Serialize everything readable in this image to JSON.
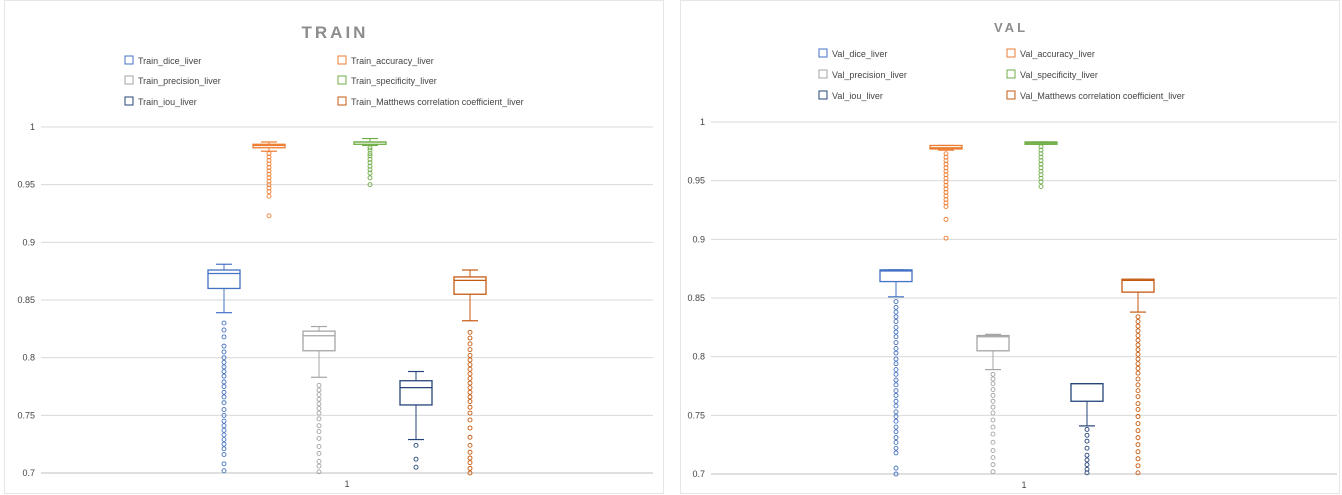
{
  "chart_data": [
    {
      "type": "box",
      "title": "TRAIN",
      "categories": [
        "1"
      ],
      "ylim": [
        0.7,
        1
      ],
      "yticks": [
        "0.7",
        "0.75",
        "0.8",
        "0.85",
        "0.9",
        "0.95",
        "1"
      ],
      "grid": true,
      "legend_position": "top",
      "series": [
        {
          "name": "Train_dice_liver",
          "color": "#4472C4",
          "whisker_low": 0.839,
          "q1": 0.86,
          "median": 0.873,
          "q3": 0.876,
          "whisker_high": 0.881,
          "outliers": [
            0.83,
            0.824,
            0.818,
            0.81,
            0.805,
            0.8,
            0.796,
            0.792,
            0.788,
            0.784,
            0.779,
            0.775,
            0.77,
            0.766,
            0.761,
            0.755,
            0.75,
            0.745,
            0.741,
            0.737,
            0.733,
            0.729,
            0.725,
            0.721,
            0.716,
            0.708,
            0.702
          ]
        },
        {
          "name": "Train_accuracy_liver",
          "color": "#ED7D31",
          "whisker_low": 0.979,
          "q1": 0.982,
          "median": 0.984,
          "q3": 0.985,
          "whisker_high": 0.987,
          "outliers": [
            0.977,
            0.974,
            0.971,
            0.968,
            0.965,
            0.962,
            0.959,
            0.956,
            0.953,
            0.95,
            0.947,
            0.944,
            0.94,
            0.923
          ]
        },
        {
          "name": "Train_precision_liver",
          "color": "#A5A5A5",
          "whisker_low": 0.783,
          "q1": 0.806,
          "median": 0.819,
          "q3": 0.823,
          "whisker_high": 0.827,
          "outliers": [
            0.776,
            0.772,
            0.768,
            0.764,
            0.76,
            0.756,
            0.752,
            0.747,
            0.741,
            0.736,
            0.73,
            0.723,
            0.717,
            0.71,
            0.706,
            0.701
          ]
        },
        {
          "name": "Train_specificity_liver",
          "color": "#70AD47",
          "whisker_low": 0.984,
          "q1": 0.985,
          "median": 0.987,
          "q3": 0.987,
          "whisker_high": 0.99,
          "outliers": [
            0.982,
            0.98,
            0.977,
            0.975,
            0.972,
            0.969,
            0.966,
            0.963,
            0.96,
            0.956,
            0.95
          ]
        },
        {
          "name": "Train_iou_liver",
          "color": "#264478",
          "whisker_low": 0.729,
          "q1": 0.759,
          "median": 0.774,
          "q3": 0.78,
          "whisker_high": 0.788,
          "outliers": [
            0.724,
            0.712,
            0.705
          ]
        },
        {
          "name": "Train_Matthews correlation coefficient_liver",
          "color": "#C55A11",
          "whisker_low": 0.832,
          "q1": 0.855,
          "median": 0.867,
          "q3": 0.87,
          "whisker_high": 0.876,
          "outliers": [
            0.822,
            0.817,
            0.812,
            0.807,
            0.802,
            0.798,
            0.794,
            0.79,
            0.786,
            0.782,
            0.778,
            0.774,
            0.77,
            0.766,
            0.762,
            0.757,
            0.752,
            0.746,
            0.739,
            0.731,
            0.724,
            0.718,
            0.713,
            0.709,
            0.704,
            0.7
          ]
        }
      ]
    },
    {
      "type": "box",
      "title": "VAL",
      "categories": [
        "1"
      ],
      "ylim": [
        0.7,
        1
      ],
      "yticks": [
        "0.7",
        "0.75",
        "0.8",
        "0.85",
        "0.9",
        "0.95",
        "1"
      ],
      "grid": true,
      "legend_position": "top",
      "series": [
        {
          "name": "Val_dice_liver",
          "color": "#4472C4",
          "whisker_low": 0.851,
          "q1": 0.864,
          "median": 0.873,
          "q3": 0.874,
          "whisker_high": 0.874,
          "outliers": [
            0.847,
            0.842,
            0.838,
            0.834,
            0.83,
            0.825,
            0.821,
            0.817,
            0.812,
            0.807,
            0.803,
            0.798,
            0.794,
            0.789,
            0.785,
            0.78,
            0.776,
            0.771,
            0.767,
            0.762,
            0.758,
            0.753,
            0.749,
            0.745,
            0.74,
            0.736,
            0.731,
            0.727,
            0.722,
            0.718,
            0.705,
            0.7
          ]
        },
        {
          "name": "Val_accuracy_liver",
          "color": "#ED7D31",
          "whisker_low": 0.976,
          "q1": 0.977,
          "median": 0.978,
          "q3": 0.98,
          "whisker_high": 0.98,
          "outliers": [
            0.973,
            0.97,
            0.967,
            0.964,
            0.961,
            0.958,
            0.955,
            0.952,
            0.949,
            0.946,
            0.943,
            0.94,
            0.937,
            0.934,
            0.931,
            0.928,
            0.917,
            0.901
          ]
        },
        {
          "name": "Val_precision_liver",
          "color": "#A5A5A5",
          "whisker_low": 0.789,
          "q1": 0.805,
          "median": 0.817,
          "q3": 0.818,
          "whisker_high": 0.819,
          "outliers": [
            0.785,
            0.781,
            0.777,
            0.772,
            0.767,
            0.762,
            0.757,
            0.752,
            0.746,
            0.74,
            0.734,
            0.727,
            0.72,
            0.714,
            0.708,
            0.702
          ]
        },
        {
          "name": "Val_specificity_liver",
          "color": "#70AD47",
          "whisker_low": 0.981,
          "q1": 0.981,
          "median": 0.982,
          "q3": 0.983,
          "whisker_high": 0.983,
          "outliers": [
            0.979,
            0.976,
            0.973,
            0.97,
            0.967,
            0.964,
            0.961,
            0.958,
            0.955,
            0.952,
            0.949,
            0.945
          ]
        },
        {
          "name": "Val_iou_liver",
          "color": "#264478",
          "whisker_low": 0.741,
          "q1": 0.762,
          "median": 0.777,
          "q3": 0.777,
          "whisker_high": 0.777,
          "outliers": [
            0.738,
            0.733,
            0.728,
            0.722,
            0.716,
            0.712,
            0.708,
            0.704,
            0.701
          ]
        },
        {
          "name": "Val_Matthews correlation coefficient_liver",
          "color": "#C55A11",
          "whisker_low": 0.838,
          "q1": 0.855,
          "median": 0.865,
          "q3": 0.866,
          "whisker_high": 0.866,
          "outliers": [
            0.834,
            0.83,
            0.826,
            0.822,
            0.818,
            0.814,
            0.81,
            0.806,
            0.802,
            0.798,
            0.794,
            0.79,
            0.786,
            0.781,
            0.776,
            0.771,
            0.766,
            0.76,
            0.755,
            0.749,
            0.743,
            0.737,
            0.731,
            0.725,
            0.719,
            0.713,
            0.707,
            0.701
          ]
        }
      ]
    }
  ]
}
